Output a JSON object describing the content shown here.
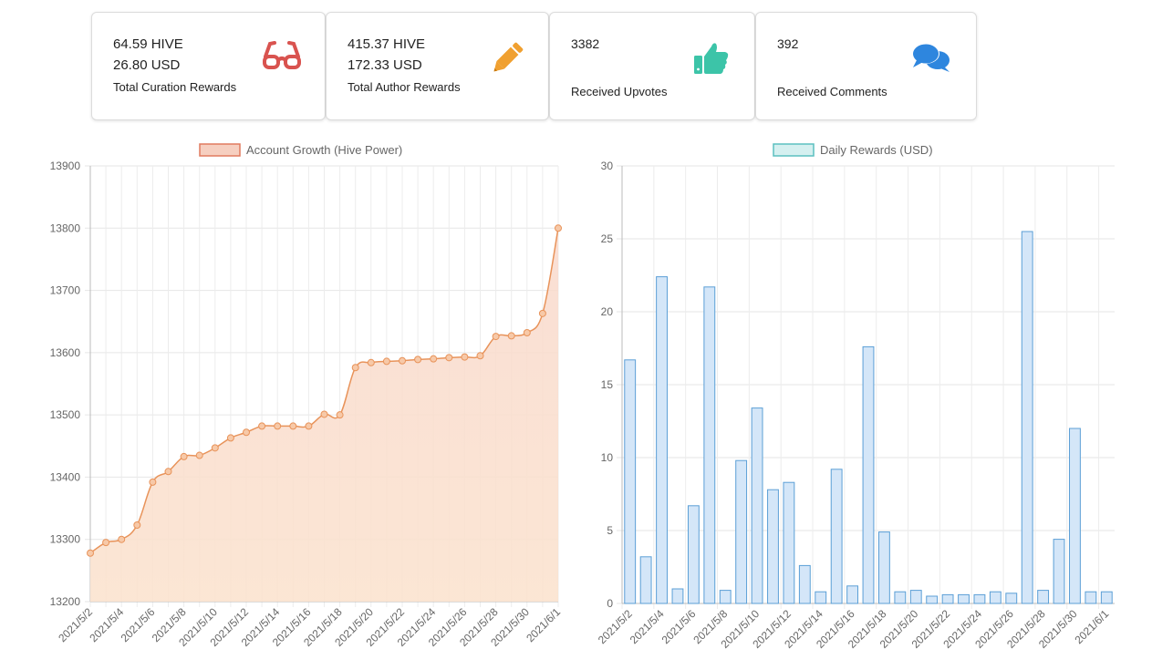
{
  "stats": {
    "curation": {
      "hive": "64.59 HIVE",
      "usd": "26.80 USD",
      "label": "Total Curation Rewards",
      "icon": "glasses-icon",
      "color": "#d9534f"
    },
    "author": {
      "hive": "415.37 HIVE",
      "usd": "172.33 USD",
      "label": "Total Author Rewards",
      "icon": "pencil-icon",
      "color": "#f0a030"
    },
    "upvotes": {
      "value": "3382",
      "label": "Received Upvotes",
      "icon": "thumbs-up-icon",
      "color": "#3cc4a8"
    },
    "comments": {
      "value": "392",
      "label": "Received Comments",
      "icon": "comments-icon",
      "color": "#2e86de"
    }
  },
  "chart_data": [
    {
      "type": "area",
      "legend": "Account Growth (Hive Power)",
      "legend_position": "top",
      "grid": true,
      "colors": {
        "line": "#e8935a",
        "fill": "#fbe3cf",
        "legend_fill": "#f6cfc0",
        "legend_border": "#e07a5f"
      },
      "ylim": [
        13200,
        13900
      ],
      "yticks": [
        "13900",
        "13800",
        "13700",
        "13600",
        "13500",
        "13400",
        "13300",
        "13200"
      ],
      "xticks": [
        "2021/5/2",
        "2021/5/4",
        "2021/5/6",
        "2021/5/8",
        "2021/5/10",
        "2021/5/12",
        "2021/5/14",
        "2021/5/16",
        "2021/5/18",
        "2021/5/20",
        "2021/5/22",
        "2021/5/24",
        "2021/5/26",
        "2021/5/28",
        "2021/5/30",
        "2021/6/1"
      ],
      "x": [
        "2021/5/2",
        "2021/5/3",
        "2021/5/4",
        "2021/5/5",
        "2021/5/6",
        "2021/5/7",
        "2021/5/8",
        "2021/5/9",
        "2021/5/10",
        "2021/5/11",
        "2021/5/12",
        "2021/5/13",
        "2021/5/14",
        "2021/5/15",
        "2021/5/16",
        "2021/5/17",
        "2021/5/18",
        "2021/5/19",
        "2021/5/20",
        "2021/5/21",
        "2021/5/22",
        "2021/5/23",
        "2021/5/24",
        "2021/5/25",
        "2021/5/26",
        "2021/5/27",
        "2021/5/28",
        "2021/5/29",
        "2021/5/30",
        "2021/5/31",
        "2021/6/1"
      ],
      "values": [
        13278,
        13295,
        13300,
        13323,
        13392,
        13409,
        13433,
        13435,
        13447,
        13463,
        13472,
        13482,
        13482,
        13482,
        13482,
        13501,
        13500,
        13576,
        13584,
        13586,
        13587,
        13589,
        13590,
        13592,
        13593,
        13595,
        13626,
        13627,
        13632,
        13663,
        13800
      ]
    },
    {
      "type": "bar",
      "legend": "Daily Rewards (USD)",
      "legend_position": "top",
      "grid": true,
      "colors": {
        "bar": "#d4e6f8",
        "border": "#5b9fd6",
        "legend_fill": "#d5f0f0",
        "legend_border": "#5cc0c0"
      },
      "ylim": [
        0,
        30
      ],
      "yticks": [
        "30",
        "25",
        "20",
        "15",
        "10",
        "5",
        "0"
      ],
      "xticks": [
        "2021/5/2",
        "2021/5/4",
        "2021/5/6",
        "2021/5/8",
        "2021/5/10",
        "2021/5/12",
        "2021/5/14",
        "2021/5/16",
        "2021/5/18",
        "2021/5/20",
        "2021/5/22",
        "2021/5/24",
        "2021/5/26",
        "2021/5/28",
        "2021/5/30",
        "2021/6/1"
      ],
      "x": [
        "2021/5/2",
        "2021/5/3",
        "2021/5/4",
        "2021/5/5",
        "2021/5/6",
        "2021/5/7",
        "2021/5/8",
        "2021/5/9",
        "2021/5/10",
        "2021/5/11",
        "2021/5/12",
        "2021/5/13",
        "2021/5/14",
        "2021/5/15",
        "2021/5/16",
        "2021/5/17",
        "2021/5/18",
        "2021/5/19",
        "2021/5/20",
        "2021/5/21",
        "2021/5/22",
        "2021/5/23",
        "2021/5/24",
        "2021/5/25",
        "2021/5/26",
        "2021/5/27",
        "2021/5/28",
        "2021/5/29",
        "2021/5/30",
        "2021/5/31",
        "2021/6/1"
      ],
      "values": [
        16.7,
        3.2,
        22.4,
        1.0,
        6.7,
        21.7,
        0.9,
        9.8,
        13.4,
        7.8,
        8.3,
        2.6,
        0.8,
        9.2,
        1.2,
        17.6,
        4.9,
        0.8,
        0.9,
        0.5,
        0.6,
        0.6,
        0.6,
        0.8,
        0.7,
        25.5,
        0.9,
        4.4,
        12.0,
        0.8,
        0.8
      ]
    }
  ]
}
